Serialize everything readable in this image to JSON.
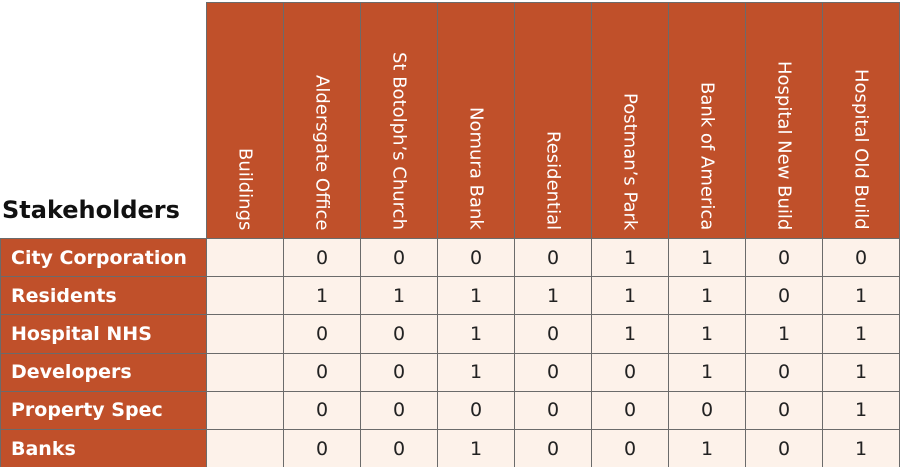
{
  "table": {
    "corner": "Stakeholders",
    "columns": [
      "Buildings",
      "Aldersgate Office",
      "St Botolph’s Church",
      "Nomura Bank",
      "Residential",
      "Postman’s Park",
      "Bank of America",
      "Hospital New Build",
      "Hospital Old Build"
    ],
    "rows": [
      {
        "label": "City Corporation",
        "cells": [
          0,
          0,
          0,
          0,
          1,
          1,
          0,
          0
        ]
      },
      {
        "label": "Residents",
        "cells": [
          1,
          1,
          1,
          1,
          1,
          1,
          0,
          1
        ]
      },
      {
        "label": "Hospital NHS",
        "cells": [
          0,
          0,
          1,
          0,
          1,
          1,
          1,
          1
        ]
      },
      {
        "label": "Developers",
        "cells": [
          0,
          0,
          1,
          0,
          0,
          1,
          0,
          1
        ]
      },
      {
        "label": "Property Spec",
        "cells": [
          0,
          0,
          0,
          0,
          0,
          0,
          0,
          1
        ]
      },
      {
        "label": "Banks",
        "cells": [
          0,
          0,
          1,
          0,
          0,
          1,
          0,
          1
        ]
      }
    ]
  }
}
